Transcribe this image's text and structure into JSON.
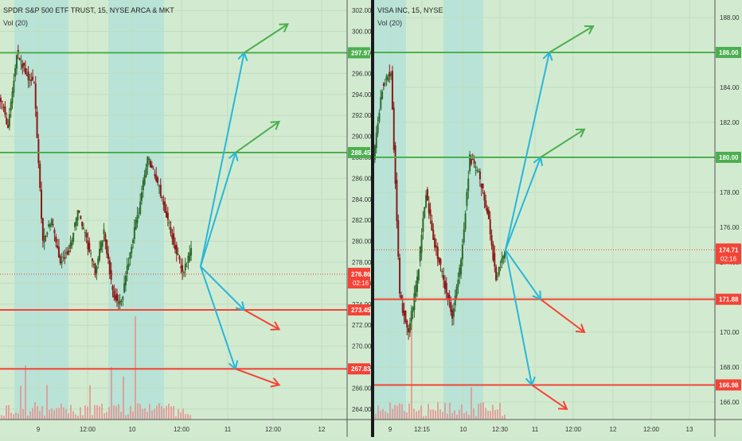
{
  "colors": {
    "background": "#d2ebd0",
    "session_band": "#b8e3d6",
    "axis_bg": "#d2ebd0",
    "green": "#4caf50",
    "red": "#f44336",
    "cyan": "#29b6d9",
    "candle_up": "#2e6b2e",
    "candle_down": "#8b1a1a",
    "volume": "#e78c8c",
    "tick_text": "#333333",
    "divider": "#1a1a1a"
  },
  "chart_data": [
    {
      "type": "candlestick",
      "title": "SPDR S&P 500 ETF TRUST, 15, NYSE ARCA & MKT",
      "subtitle": "Vol (20)",
      "ylim": [
        263,
        303
      ],
      "y_ticks": [
        264,
        266,
        268,
        270,
        272,
        274,
        276,
        278,
        280,
        282,
        284,
        286,
        288,
        290,
        292,
        294,
        296,
        298,
        300,
        302
      ],
      "y_tick_labels": [
        "264.00",
        "266.00",
        "268.00",
        "270.00",
        "272.00",
        "274.00",
        "276.00",
        "278.00",
        "280.00",
        "282.00",
        "284.00",
        "286.00",
        "288.00",
        "290.00",
        "292.00",
        "294.00",
        "296.00",
        "298.00",
        "300.00",
        "302.00"
      ],
      "x_tick_labels": [
        "9",
        "12:00",
        "10",
        "12:00",
        "11",
        "12:00",
        "12"
      ],
      "price_path": [
        294,
        291,
        298,
        296,
        295,
        280,
        282,
        278,
        279,
        283,
        280,
        277,
        281,
        275,
        274,
        279,
        283,
        288,
        286,
        283,
        280,
        277,
        279
      ],
      "horizontal_levels": [
        {
          "value": 297.97,
          "label": "297.97",
          "color": "green"
        },
        {
          "value": 288.45,
          "label": "288.45",
          "color": "green"
        },
        {
          "value": 273.45,
          "label": "273.45",
          "color": "red"
        },
        {
          "value": 267.83,
          "label": "267.83",
          "color": "red"
        }
      ],
      "current_price": {
        "value": 276.86,
        "label": "276.86",
        "countdown": "02:16"
      },
      "projection_arrows": [
        {
          "from": [
            23,
            277.6
          ],
          "to": [
            28,
            297.97
          ],
          "color": "cyan"
        },
        {
          "from": [
            28,
            297.97
          ],
          "to": [
            33,
            300.7
          ],
          "color": "green"
        },
        {
          "from": [
            23,
            277.6
          ],
          "to": [
            27,
            288.45
          ],
          "color": "cyan"
        },
        {
          "from": [
            27,
            288.45
          ],
          "to": [
            32,
            291.4
          ],
          "color": "green"
        },
        {
          "from": [
            23,
            277.6
          ],
          "to": [
            28,
            273.45
          ],
          "color": "cyan"
        },
        {
          "from": [
            28,
            273.45
          ],
          "to": [
            32,
            271.6
          ],
          "color": "red"
        },
        {
          "from": [
            23,
            277.6
          ],
          "to": [
            27,
            267.83
          ],
          "color": "cyan"
        },
        {
          "from": [
            27,
            267.83
          ],
          "to": [
            32,
            266.3
          ],
          "color": "red"
        }
      ]
    },
    {
      "type": "candlestick",
      "title": "VISA INC, 15, NYSE",
      "subtitle": "Vol (20)",
      "ylim": [
        165,
        189
      ],
      "y_ticks": [
        166,
        168,
        170,
        172,
        174,
        176,
        178,
        180,
        182,
        184,
        186,
        188
      ],
      "y_tick_labels": [
        "166.00",
        "168.00",
        "170.00",
        "172.00",
        "174.00",
        "176.00",
        "178.00",
        "180.00",
        "182.00",
        "184.00",
        "186.00",
        "188.00"
      ],
      "x_tick_labels": [
        "9",
        "12:15",
        "10",
        "12:30",
        "11",
        "12:00",
        "12",
        "12:00",
        "13"
      ],
      "price_path": [
        180,
        184,
        185,
        172,
        170,
        173,
        178,
        175,
        173,
        171,
        174,
        180,
        179,
        177,
        173,
        174.7
      ],
      "horizontal_levels": [
        {
          "value": 186.0,
          "label": "186.00",
          "color": "green"
        },
        {
          "value": 180.0,
          "label": "180.00",
          "color": "green"
        },
        {
          "value": 171.88,
          "label": "171.88",
          "color": "red"
        },
        {
          "value": 166.98,
          "label": "166.98",
          "color": "red"
        }
      ],
      "current_price": {
        "value": 174.71,
        "label": "174.71",
        "countdown": "02:16"
      },
      "projection_arrows": [
        {
          "from": [
            15,
            174.71
          ],
          "to": [
            20,
            186.0
          ],
          "color": "cyan"
        },
        {
          "from": [
            20,
            186.0
          ],
          "to": [
            25,
            187.5
          ],
          "color": "green"
        },
        {
          "from": [
            15,
            174.71
          ],
          "to": [
            19,
            180.0
          ],
          "color": "cyan"
        },
        {
          "from": [
            19,
            180.0
          ],
          "to": [
            24,
            181.6
          ],
          "color": "green"
        },
        {
          "from": [
            15,
            174.71
          ],
          "to": [
            19,
            171.88
          ],
          "color": "cyan"
        },
        {
          "from": [
            19,
            171.88
          ],
          "to": [
            24,
            170.0
          ],
          "color": "red"
        },
        {
          "from": [
            15,
            174.71
          ],
          "to": [
            18,
            166.98
          ],
          "color": "cyan"
        },
        {
          "from": [
            18,
            166.98
          ],
          "to": [
            22,
            165.6
          ],
          "color": "red"
        }
      ]
    }
  ]
}
